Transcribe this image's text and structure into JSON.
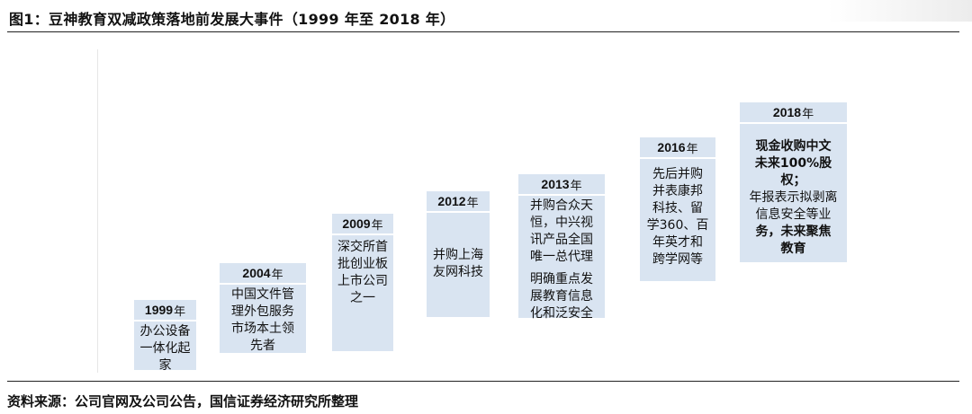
{
  "title": "图1：豆神教育双减政策落地前发展大事件（1999 年至 2018 年）",
  "source": "资料来源：公司官网及公司公告，国信证券经济研究所整理",
  "nian": "年",
  "events": [
    {
      "year": "1999",
      "lines": [
        "办公设备",
        "一体化起",
        "家"
      ]
    },
    {
      "year": "2004",
      "lines": [
        "中国文件管",
        "理外包服务",
        "市场本土领",
        "先者"
      ]
    },
    {
      "year": "2009",
      "lines": [
        "深交所首",
        "批创业板",
        "上市公司",
        "之一"
      ]
    },
    {
      "year": "2012",
      "lines": [
        "并购上海",
        "友网科技"
      ]
    },
    {
      "year": "2013",
      "para1": [
        "并购合众天",
        "恒，中兴视",
        "讯产品全国",
        "唯一总代理"
      ],
      "para2": [
        "明确重点发",
        "展教育信息",
        "化和泛安全"
      ]
    },
    {
      "year": "2016",
      "lines": [
        "先后并购",
        "并表康邦",
        "科技、留",
        "学360、百",
        "年英才和",
        "跨学网等"
      ]
    },
    {
      "year": "2018",
      "lines": [
        "现金收购中文",
        "未来100%股",
        "权；",
        "年报表示拟剥离",
        "信息安全等业",
        "务，未来聚焦",
        "教育"
      ]
    }
  ]
}
